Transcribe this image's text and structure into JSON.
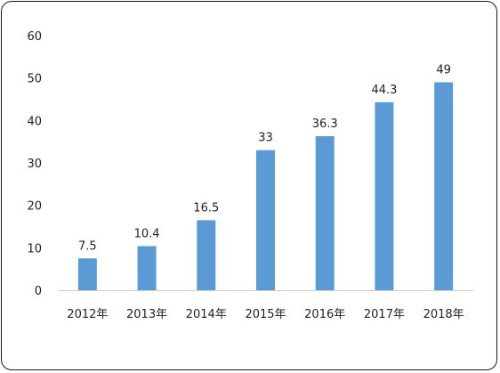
{
  "chart_data": {
    "type": "bar",
    "categories": [
      "2012年",
      "2013年",
      "2014年",
      "2015年",
      "2016年",
      "2017年",
      "2018年"
    ],
    "values": [
      7.5,
      10.4,
      16.5,
      33,
      36.3,
      44.3,
      49
    ],
    "data_labels": [
      "7.5",
      "10.4",
      "16.5",
      "33",
      "36.3",
      "44.3",
      "49"
    ],
    "y_ticks": [
      "0",
      "10",
      "20",
      "30",
      "40",
      "50",
      "60"
    ],
    "ylim": [
      0,
      60
    ],
    "grid": false,
    "legend": "none",
    "bar_color": "#5b9bd5"
  }
}
